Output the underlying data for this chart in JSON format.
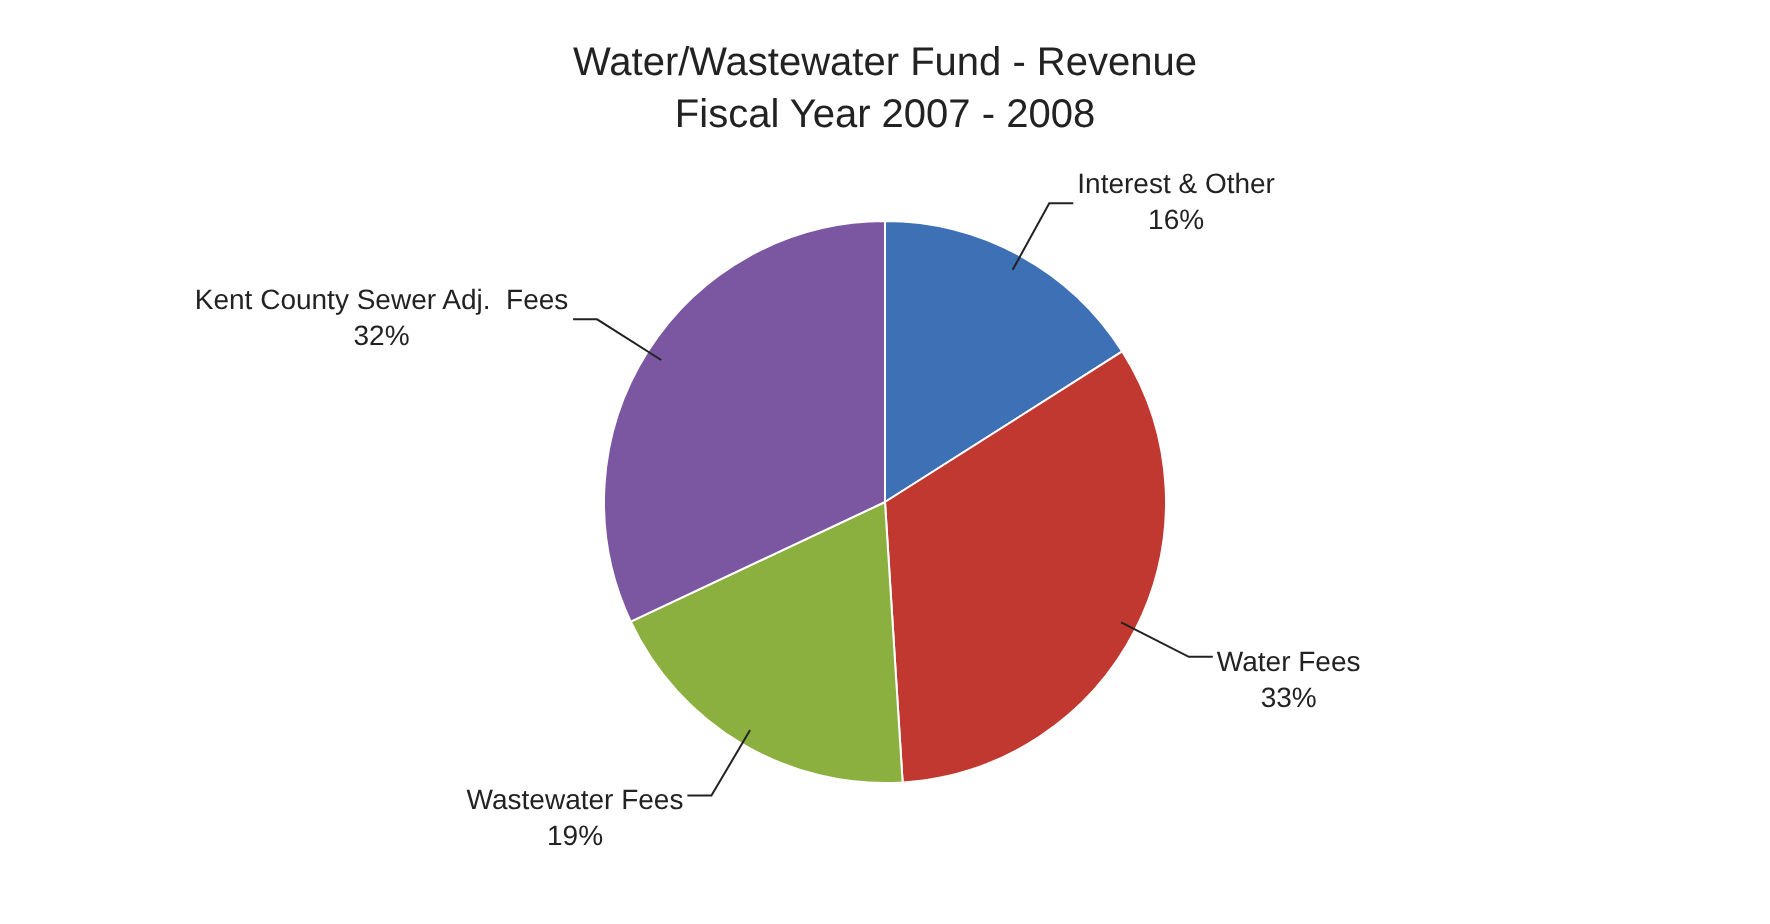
{
  "chart_data": {
    "type": "pie",
    "title": "Water/Wastewater Fund - Revenue",
    "subtitle": "Fiscal Year 2007 - 2008",
    "categories": [
      "Interest & Other",
      "Water Fees",
      "Wastewater Fees",
      "Kent County Sewer Adj.  Fees"
    ],
    "values": [
      16,
      33,
      19,
      32
    ],
    "value_labels": [
      "16%",
      "33%",
      "19%",
      "32%"
    ],
    "colors": [
      "#3e70b5",
      "#c0382f",
      "#8bb040",
      "#7b57a2"
    ],
    "legend": false
  }
}
